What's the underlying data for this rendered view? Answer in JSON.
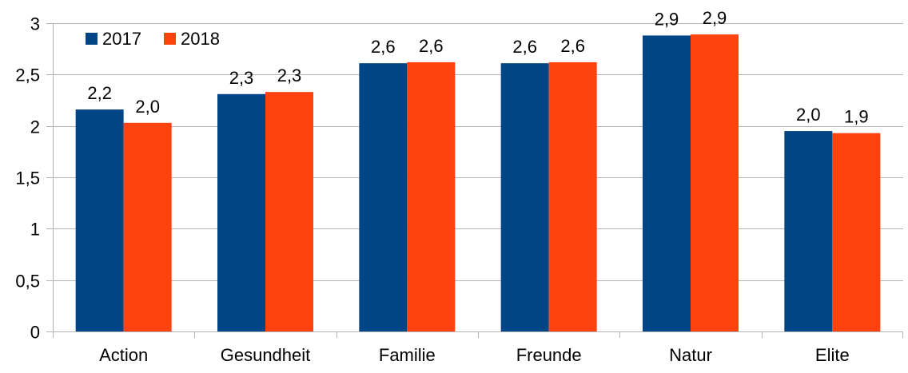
{
  "chart_data": {
    "type": "bar",
    "title": "",
    "xlabel": "",
    "ylabel": "",
    "categories": [
      "Action",
      "Gesundheit",
      "Familie",
      "Freunde",
      "Natur",
      "Elite"
    ],
    "series": [
      {
        "name": "2017",
        "color": "#004586",
        "values": [
          2.16,
          2.31,
          2.61,
          2.61,
          2.88,
          1.95
        ],
        "labels": [
          "2,2",
          "2,3",
          "2,6",
          "2,6",
          "2,9",
          "2,0"
        ]
      },
      {
        "name": "2018",
        "color": "#ff420e",
        "values": [
          2.03,
          2.33,
          2.62,
          2.62,
          2.89,
          1.93
        ],
        "labels": [
          "2,0",
          "2,3",
          "2,6",
          "2,6",
          "2,9",
          "1,9"
        ]
      }
    ],
    "ylim": [
      0,
      3
    ],
    "yticks": [
      0,
      0.5,
      1,
      1.5,
      2,
      2.5,
      3
    ],
    "ytick_labels": [
      "0",
      "0,5",
      "1",
      "1,5",
      "2",
      "2,5",
      "3"
    ],
    "grid": true,
    "legend_position": "top-left"
  }
}
